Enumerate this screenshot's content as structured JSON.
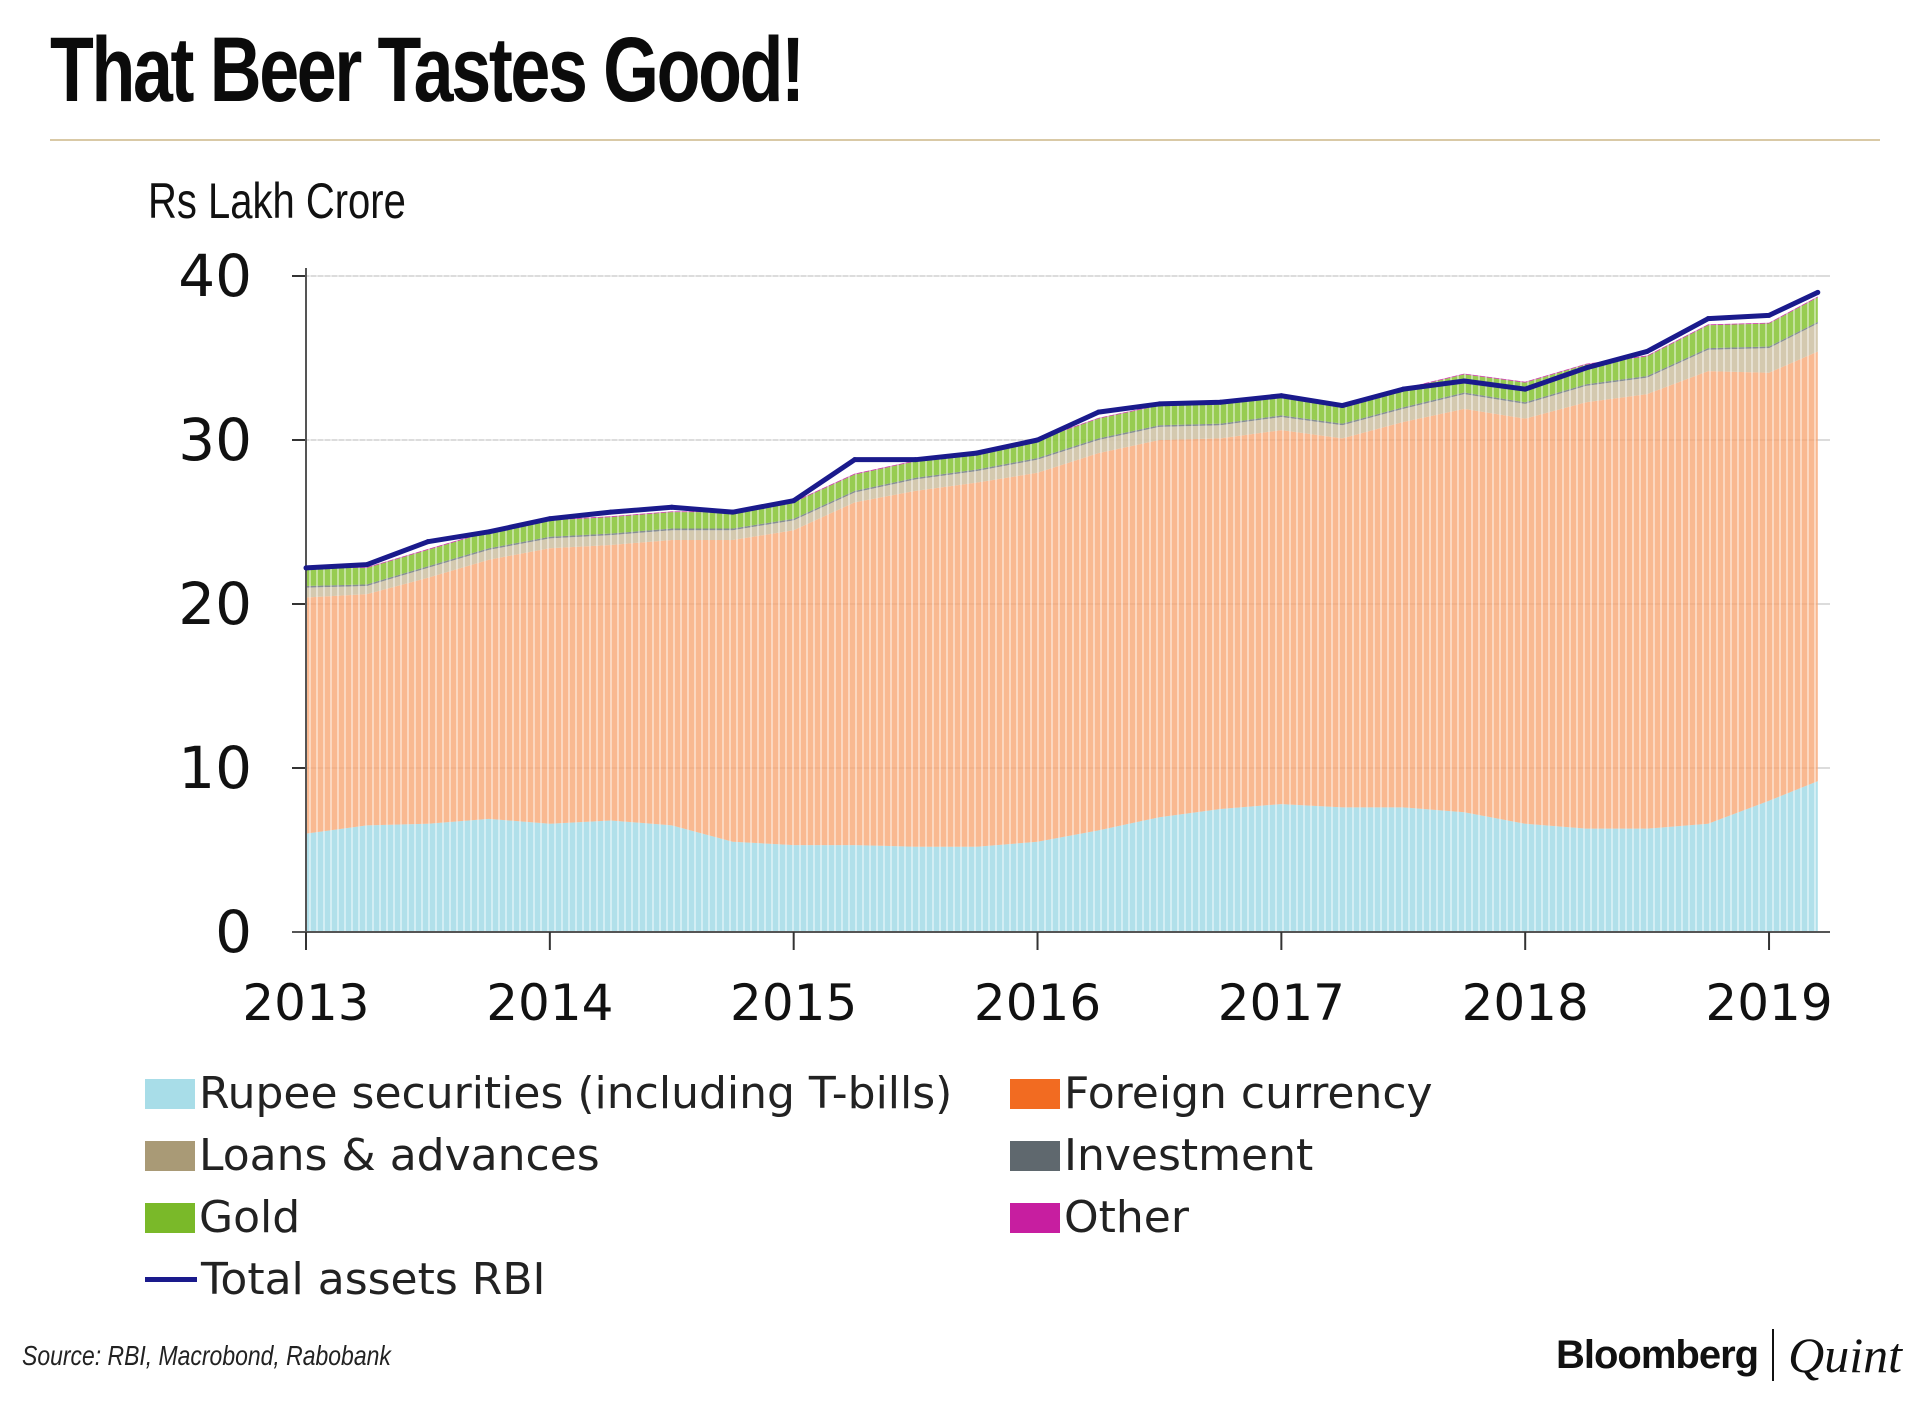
{
  "header": {
    "title": "That Beer Tastes Good!",
    "unit_label": "Rs Lakh Crore"
  },
  "colors": {
    "rupee": "#a8dde8",
    "foreign": "#f7a572",
    "loans": "#cfc3a6",
    "gold": "#8cc63e",
    "total": "#1a1a8c",
    "grid": "#dcdcdc",
    "axis": "#333333"
  },
  "chart_data": {
    "type": "area",
    "x": [
      2013.0,
      2013.25,
      2013.5,
      2013.75,
      2014.0,
      2014.25,
      2014.5,
      2014.75,
      2015.0,
      2015.25,
      2015.5,
      2015.75,
      2016.0,
      2016.25,
      2016.5,
      2016.75,
      2017.0,
      2017.25,
      2017.5,
      2017.75,
      2018.0,
      2018.25,
      2018.5,
      2018.75,
      2019.0,
      2019.2
    ],
    "series": [
      {
        "name": "Rupee securities (including T-bills)",
        "values": [
          6.0,
          6.5,
          6.6,
          6.9,
          6.6,
          6.8,
          6.5,
          5.5,
          5.3,
          5.3,
          5.2,
          5.2,
          5.5,
          6.2,
          7.0,
          7.5,
          7.8,
          7.6,
          7.6,
          7.3,
          6.6,
          6.3,
          6.3,
          6.6,
          8.0,
          9.2
        ]
      },
      {
        "name": "Foreign currency",
        "values": [
          14.4,
          14.1,
          15.0,
          15.8,
          16.8,
          16.8,
          17.4,
          18.4,
          19.2,
          20.9,
          21.7,
          22.2,
          22.5,
          23.0,
          23.0,
          22.6,
          22.8,
          22.5,
          23.5,
          24.6,
          24.7,
          26.0,
          26.5,
          27.6,
          26.1,
          26.2
        ]
      },
      {
        "name": "Loans & advances",
        "values": [
          0.6,
          0.5,
          0.6,
          0.6,
          0.6,
          0.6,
          0.6,
          0.6,
          0.6,
          0.6,
          0.7,
          0.7,
          0.8,
          0.8,
          0.8,
          0.8,
          0.8,
          0.8,
          0.8,
          0.9,
          0.9,
          1.0,
          1.0,
          1.3,
          1.5,
          1.7
        ]
      },
      {
        "name": "Investment",
        "values": [
          0.1,
          0.1,
          0.1,
          0.1,
          0.1,
          0.1,
          0.1,
          0.1,
          0.1,
          0.1,
          0.1,
          0.1,
          0.1,
          0.1,
          0.1,
          0.1,
          0.1,
          0.1,
          0.1,
          0.1,
          0.1,
          0.1,
          0.1,
          0.1,
          0.1,
          0.1
        ]
      },
      {
        "name": "Gold",
        "values": [
          1.1,
          1.0,
          1.0,
          1.0,
          1.0,
          1.0,
          1.0,
          1.0,
          1.0,
          1.0,
          1.0,
          1.0,
          1.1,
          1.2,
          1.2,
          1.2,
          1.1,
          1.1,
          1.1,
          1.1,
          1.2,
          1.2,
          1.2,
          1.4,
          1.4,
          1.5
        ]
      },
      {
        "name": "Other",
        "values": [
          0.05,
          0.05,
          0.05,
          0.05,
          0.05,
          0.05,
          0.05,
          0.05,
          0.05,
          0.05,
          0.05,
          0.05,
          0.05,
          0.05,
          0.05,
          0.05,
          0.05,
          0.05,
          0.05,
          0.05,
          0.05,
          0.05,
          0.05,
          0.05,
          0.05,
          0.05
        ]
      },
      {
        "name": "Total assets RBI",
        "values": [
          22.2,
          22.4,
          23.8,
          24.4,
          25.2,
          25.6,
          25.9,
          25.6,
          26.3,
          28.8,
          28.8,
          29.2,
          30.0,
          31.7,
          32.2,
          32.3,
          32.7,
          32.1,
          33.1,
          33.6,
          33.1,
          34.4,
          35.4,
          37.4,
          37.6,
          39.0
        ]
      }
    ],
    "title": "That Beer Tastes Good!",
    "ylabel": "Rs Lakh Crore",
    "xlabel": "",
    "ylim": [
      0,
      40
    ],
    "xlim": [
      2013.0,
      2019.25
    ],
    "yticks": [
      "0",
      "10",
      "20",
      "30",
      "40"
    ],
    "xticks": [
      "2013",
      "2014",
      "2015",
      "2016",
      "2017",
      "2018",
      "2019"
    ],
    "grid": true,
    "legend": [
      "Rupee securities (including T-bills)",
      "Foreign currency",
      "Loans & advances",
      "Investment",
      "Gold",
      "Other",
      "Total assets RBI"
    ]
  },
  "footer": {
    "source": "Source: RBI, Macrobond, Rabobank",
    "brand_left": "Bloomberg",
    "brand_right": "Quint"
  }
}
